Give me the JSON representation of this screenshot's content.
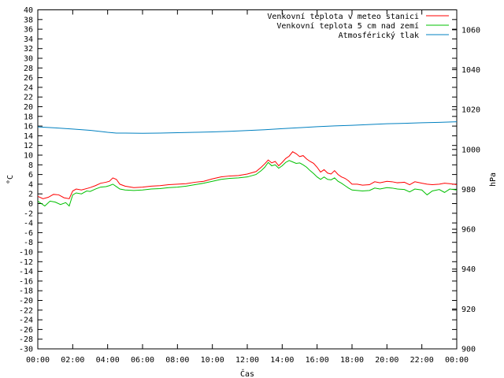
{
  "chart_data": {
    "type": "line",
    "xlabel": "Čas",
    "ylabel_left": "°C",
    "ylabel_right": "hPa",
    "x_ticks": [
      "00:00",
      "02:00",
      "04:00",
      "06:00",
      "08:00",
      "10:00",
      "12:00",
      "14:00",
      "16:00",
      "18:00",
      "20:00",
      "22:00",
      "00:00"
    ],
    "x_range_hours": [
      0,
      24
    ],
    "ylim_left": [
      -30,
      40
    ],
    "y_ticks_left": [
      40,
      38,
      36,
      34,
      32,
      30,
      28,
      26,
      24,
      22,
      20,
      18,
      16,
      14,
      12,
      10,
      8,
      6,
      4,
      2,
      0,
      -2,
      -4,
      -6,
      -8,
      -10,
      -12,
      -14,
      -16,
      -18,
      -20,
      -22,
      -24,
      -26,
      -28,
      -30
    ],
    "ylim_right": [
      900,
      1070
    ],
    "y_ticks_right": [
      1060,
      1040,
      1020,
      1000,
      980,
      960,
      940,
      920,
      900
    ],
    "legend_position": "top-right",
    "grid": false,
    "series": [
      {
        "name": "Venkovní teplota v meteo stanici",
        "axis": "left",
        "color": "#ff0000",
        "points": [
          [
            0,
            1.5
          ],
          [
            0.3,
            1.0
          ],
          [
            0.6,
            1.3
          ],
          [
            0.9,
            1.9
          ],
          [
            1.2,
            1.8
          ],
          [
            1.5,
            1.2
          ],
          [
            1.8,
            1.0
          ],
          [
            2.0,
            2.6
          ],
          [
            2.2,
            3.0
          ],
          [
            2.5,
            2.8
          ],
          [
            2.8,
            3.1
          ],
          [
            3.0,
            3.3
          ],
          [
            3.3,
            3.7
          ],
          [
            3.6,
            4.2
          ],
          [
            3.9,
            4.4
          ],
          [
            4.1,
            4.6
          ],
          [
            4.3,
            5.3
          ],
          [
            4.5,
            5.0
          ],
          [
            4.7,
            4.0
          ],
          [
            5.0,
            3.6
          ],
          [
            5.5,
            3.3
          ],
          [
            6.0,
            3.4
          ],
          [
            6.5,
            3.6
          ],
          [
            7.0,
            3.7
          ],
          [
            7.5,
            3.9
          ],
          [
            8.0,
            4.0
          ],
          [
            8.5,
            4.1
          ],
          [
            9.0,
            4.4
          ],
          [
            9.5,
            4.6
          ],
          [
            10.0,
            5.1
          ],
          [
            10.5,
            5.5
          ],
          [
            11.0,
            5.7
          ],
          [
            11.5,
            5.8
          ],
          [
            12.0,
            6.1
          ],
          [
            12.5,
            6.6
          ],
          [
            12.8,
            7.5
          ],
          [
            13.0,
            8.2
          ],
          [
            13.2,
            9.0
          ],
          [
            13.4,
            8.4
          ],
          [
            13.6,
            8.7
          ],
          [
            13.8,
            7.8
          ],
          [
            14.0,
            8.5
          ],
          [
            14.2,
            9.3
          ],
          [
            14.4,
            9.8
          ],
          [
            14.6,
            10.7
          ],
          [
            14.8,
            10.3
          ],
          [
            15.0,
            9.7
          ],
          [
            15.2,
            9.9
          ],
          [
            15.4,
            9.2
          ],
          [
            15.6,
            8.7
          ],
          [
            15.8,
            8.3
          ],
          [
            16.0,
            7.5
          ],
          [
            16.2,
            6.5
          ],
          [
            16.4,
            7.0
          ],
          [
            16.6,
            6.3
          ],
          [
            16.8,
            6.1
          ],
          [
            17.0,
            6.8
          ],
          [
            17.2,
            6.0
          ],
          [
            17.4,
            5.5
          ],
          [
            17.6,
            5.2
          ],
          [
            17.8,
            4.7
          ],
          [
            18.0,
            4.0
          ],
          [
            18.3,
            4.0
          ],
          [
            18.6,
            3.8
          ],
          [
            19.0,
            3.9
          ],
          [
            19.3,
            4.5
          ],
          [
            19.6,
            4.3
          ],
          [
            20.0,
            4.6
          ],
          [
            20.3,
            4.5
          ],
          [
            20.6,
            4.3
          ],
          [
            21.0,
            4.4
          ],
          [
            21.3,
            3.9
          ],
          [
            21.6,
            4.5
          ],
          [
            22.0,
            4.2
          ],
          [
            22.3,
            4.0
          ],
          [
            22.6,
            3.9
          ],
          [
            23.0,
            4.0
          ],
          [
            23.3,
            4.2
          ],
          [
            23.6,
            4.1
          ],
          [
            24.0,
            3.9
          ]
        ]
      },
      {
        "name": "Venkovní teplota 5 cm nad zemí",
        "axis": "left",
        "color": "#00c000",
        "points": [
          [
            0,
            0.5
          ],
          [
            0.2,
            0.0
          ],
          [
            0.4,
            -0.5
          ],
          [
            0.7,
            0.5
          ],
          [
            1.0,
            0.3
          ],
          [
            1.3,
            -0.2
          ],
          [
            1.6,
            0.2
          ],
          [
            1.8,
            -0.5
          ],
          [
            2.0,
            1.8
          ],
          [
            2.2,
            2.2
          ],
          [
            2.5,
            2.0
          ],
          [
            2.8,
            2.6
          ],
          [
            3.0,
            2.5
          ],
          [
            3.3,
            3.0
          ],
          [
            3.6,
            3.4
          ],
          [
            3.9,
            3.5
          ],
          [
            4.1,
            3.7
          ],
          [
            4.3,
            4.0
          ],
          [
            4.5,
            3.5
          ],
          [
            4.7,
            3.0
          ],
          [
            5.0,
            2.8
          ],
          [
            5.5,
            2.7
          ],
          [
            6.0,
            2.8
          ],
          [
            6.5,
            3.0
          ],
          [
            7.0,
            3.1
          ],
          [
            7.5,
            3.3
          ],
          [
            8.0,
            3.4
          ],
          [
            8.5,
            3.6
          ],
          [
            9.0,
            3.9
          ],
          [
            9.5,
            4.2
          ],
          [
            10.0,
            4.6
          ],
          [
            10.5,
            5.0
          ],
          [
            11.0,
            5.2
          ],
          [
            11.5,
            5.3
          ],
          [
            12.0,
            5.5
          ],
          [
            12.5,
            6.0
          ],
          [
            12.8,
            6.8
          ],
          [
            13.0,
            7.5
          ],
          [
            13.2,
            8.5
          ],
          [
            13.4,
            7.8
          ],
          [
            13.6,
            8.0
          ],
          [
            13.8,
            7.3
          ],
          [
            14.0,
            7.8
          ],
          [
            14.2,
            8.5
          ],
          [
            14.4,
            8.9
          ],
          [
            14.6,
            8.6
          ],
          [
            14.8,
            8.3
          ],
          [
            15.0,
            8.4
          ],
          [
            15.2,
            8.0
          ],
          [
            15.4,
            7.5
          ],
          [
            15.6,
            6.8
          ],
          [
            15.8,
            6.2
          ],
          [
            16.0,
            5.5
          ],
          [
            16.2,
            5.0
          ],
          [
            16.4,
            5.5
          ],
          [
            16.6,
            5.0
          ],
          [
            16.8,
            4.9
          ],
          [
            17.0,
            5.3
          ],
          [
            17.2,
            4.6
          ],
          [
            17.4,
            4.2
          ],
          [
            17.6,
            3.7
          ],
          [
            17.8,
            3.2
          ],
          [
            18.0,
            2.8
          ],
          [
            18.3,
            2.7
          ],
          [
            18.6,
            2.6
          ],
          [
            19.0,
            2.7
          ],
          [
            19.3,
            3.2
          ],
          [
            19.6,
            3.0
          ],
          [
            20.0,
            3.3
          ],
          [
            20.3,
            3.2
          ],
          [
            20.6,
            3.0
          ],
          [
            21.0,
            2.9
          ],
          [
            21.3,
            2.4
          ],
          [
            21.6,
            3.0
          ],
          [
            22.0,
            2.8
          ],
          [
            22.3,
            1.8
          ],
          [
            22.6,
            2.6
          ],
          [
            23.0,
            2.9
          ],
          [
            23.3,
            2.3
          ],
          [
            23.6,
            3.0
          ],
          [
            24.0,
            2.8
          ]
        ]
      },
      {
        "name": "Atmosférický tlak",
        "axis": "right",
        "color": "#0080c0",
        "points": [
          [
            0,
            1011.3
          ],
          [
            1.0,
            1010.8
          ],
          [
            2.0,
            1010.2
          ],
          [
            3.0,
            1009.6
          ],
          [
            4.0,
            1008.6
          ],
          [
            4.5,
            1008.2
          ],
          [
            5.0,
            1008.2
          ],
          [
            6.0,
            1008.1
          ],
          [
            7.0,
            1008.2
          ],
          [
            8.0,
            1008.4
          ],
          [
            9.0,
            1008.6
          ],
          [
            10.0,
            1008.8
          ],
          [
            11.0,
            1009.1
          ],
          [
            12.0,
            1009.5
          ],
          [
            13.0,
            1009.9
          ],
          [
            14.0,
            1010.4
          ],
          [
            15.0,
            1010.9
          ],
          [
            16.0,
            1011.4
          ],
          [
            17.0,
            1011.8
          ],
          [
            18.0,
            1012.1
          ],
          [
            19.0,
            1012.5
          ],
          [
            20.0,
            1012.9
          ],
          [
            21.0,
            1013.1
          ],
          [
            22.0,
            1013.4
          ],
          [
            23.0,
            1013.6
          ],
          [
            24.0,
            1013.9
          ]
        ]
      }
    ]
  }
}
